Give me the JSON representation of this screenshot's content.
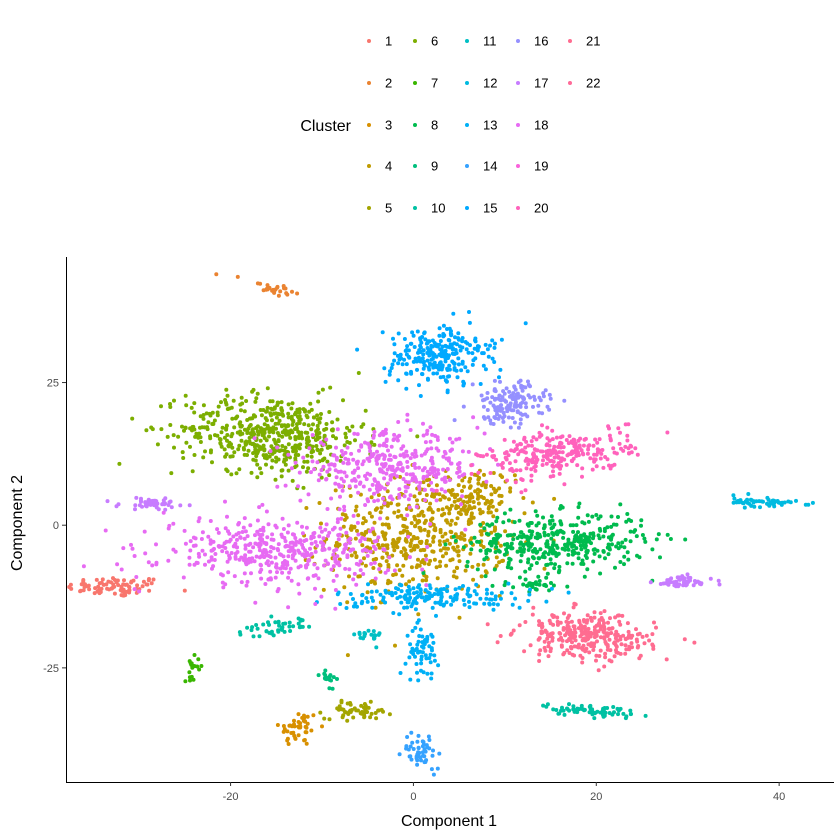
{
  "chart_data": {
    "type": "scatter",
    "title": "",
    "xlabel": "Component 1",
    "ylabel": "Component 2",
    "xlim": [
      -38,
      46
    ],
    "ylim": [
      -45,
      47
    ],
    "x_ticks": [
      -20,
      0,
      20,
      40
    ],
    "y_ticks": [
      -25,
      0,
      25
    ],
    "grid": false,
    "legend": {
      "title": "Cluster",
      "position": "top"
    },
    "series": [
      {
        "name": "1",
        "color": "#F8766D",
        "clusters": [
          {
            "cx": -32.5,
            "cy": -10.8,
            "sx": 3.0,
            "sy": 1.0,
            "n": 80
          }
        ]
      },
      {
        "name": "2",
        "color": "#EA8331",
        "clusters": [
          {
            "cx": -15.5,
            "cy": 41.5,
            "sx": 1.8,
            "sy": 0.6,
            "n": 28,
            "rot": -0.35
          }
        ]
      },
      {
        "name": "3",
        "color": "#D89000",
        "clusters": [
          {
            "cx": -12.5,
            "cy": -35.5,
            "sx": 1.2,
            "sy": 1.8,
            "n": 45
          }
        ]
      },
      {
        "name": "4",
        "color": "#C09B00",
        "clusters": [
          {
            "cx": 0.5,
            "cy": -2.0,
            "sx": 5.5,
            "sy": 5.5,
            "n": 480
          },
          {
            "cx": 6.5,
            "cy": 4.5,
            "sx": 2.5,
            "sy": 3.0,
            "n": 90
          }
        ]
      },
      {
        "name": "5",
        "color": "#A3A500",
        "clusters": [
          {
            "cx": -6.0,
            "cy": -32.5,
            "sx": 2.0,
            "sy": 0.8,
            "n": 55
          }
        ]
      },
      {
        "name": "6",
        "color": "#7CAE00",
        "clusters": [
          {
            "cx": -15.5,
            "cy": 16.0,
            "sx": 5.5,
            "sy": 3.8,
            "n": 520,
            "rot": -0.12
          }
        ]
      },
      {
        "name": "7",
        "color": "#39B600",
        "clusters": [
          {
            "cx": -24.0,
            "cy": -24.5,
            "sx": 0.6,
            "sy": 1.3,
            "n": 18
          }
        ]
      },
      {
        "name": "8",
        "color": "#00BB4E",
        "clusters": [
          {
            "cx": 15.5,
            "cy": -3.0,
            "sx": 5.5,
            "sy": 2.8,
            "n": 380,
            "rot": 0.05
          },
          {
            "cx": 13.5,
            "cy": -10.5,
            "sx": 1.8,
            "sy": 0.6,
            "n": 30
          }
        ]
      },
      {
        "name": "9",
        "color": "#00BF7D",
        "clusters": [
          {
            "cx": -9.5,
            "cy": -26.0,
            "sx": 0.5,
            "sy": 1.2,
            "n": 18
          }
        ]
      },
      {
        "name": "10",
        "color": "#00C1A3",
        "clusters": [
          {
            "cx": -15.0,
            "cy": -18.0,
            "sx": 2.2,
            "sy": 0.8,
            "n": 45,
            "rot": 0.35
          },
          {
            "cx": 19.5,
            "cy": -32.5,
            "sx": 3.0,
            "sy": 0.6,
            "n": 70,
            "rot": -0.1
          }
        ]
      },
      {
        "name": "11",
        "color": "#00BFC4",
        "clusters": [
          {
            "cx": -5.0,
            "cy": -19.5,
            "sx": 0.8,
            "sy": 0.8,
            "n": 20
          }
        ]
      },
      {
        "name": "12",
        "color": "#00BAE0",
        "clusters": [
          {
            "cx": 38.5,
            "cy": 4.0,
            "sx": 2.0,
            "sy": 0.5,
            "n": 55,
            "rot": -0.12
          }
        ]
      },
      {
        "name": "13",
        "color": "#00B0F6",
        "clusters": [
          {
            "cx": 2.0,
            "cy": -12.5,
            "sx": 6.0,
            "sy": 1.3,
            "n": 170
          },
          {
            "cx": 1.0,
            "cy": -22.0,
            "sx": 1.0,
            "sy": 2.5,
            "n": 60
          }
        ]
      },
      {
        "name": "14",
        "color": "#35A2FF",
        "clusters": [
          {
            "cx": 1.0,
            "cy": -39.5,
            "sx": 1.2,
            "sy": 1.8,
            "n": 50
          }
        ]
      },
      {
        "name": "15",
        "color": "#00A9FF",
        "clusters": [
          {
            "cx": 2.5,
            "cy": 29.5,
            "sx": 3.0,
            "sy": 3.0,
            "n": 230
          },
          {
            "cx": 7.0,
            "cy": 31.5,
            "sx": 1.5,
            "sy": 0.6,
            "n": 22
          }
        ]
      },
      {
        "name": "16",
        "color": "#9590FF",
        "clusters": [
          {
            "cx": 10.5,
            "cy": 21.5,
            "sx": 2.2,
            "sy": 2.0,
            "n": 150
          }
        ]
      },
      {
        "name": "17",
        "color": "#C77CFF",
        "clusters": [
          {
            "cx": -28.5,
            "cy": 3.8,
            "sx": 2.0,
            "sy": 0.6,
            "n": 55
          },
          {
            "cx": 29.5,
            "cy": -10.0,
            "sx": 1.8,
            "sy": 0.6,
            "n": 55
          }
        ]
      },
      {
        "name": "18",
        "color": "#E76BF3",
        "clusters": [
          {
            "cx": -2.5,
            "cy": 10.0,
            "sx": 5.5,
            "sy": 3.5,
            "n": 360
          },
          {
            "cx": -15.0,
            "cy": -4.5,
            "sx": 7.0,
            "sy": 3.2,
            "n": 430
          }
        ]
      },
      {
        "name": "19",
        "color": "#FA62DB",
        "clusters": []
      },
      {
        "name": "20",
        "color": "#FF62BC",
        "clusters": [
          {
            "cx": 16.0,
            "cy": 12.5,
            "sx": 4.5,
            "sy": 2.2,
            "n": 260,
            "rot": 0.25
          }
        ]
      },
      {
        "name": "21",
        "color": "#FF6C90",
        "clusters": [
          {
            "cx": 19.0,
            "cy": -19.5,
            "sx": 4.0,
            "sy": 2.2,
            "n": 300,
            "rot": -0.15
          }
        ]
      },
      {
        "name": "22",
        "color": "#FF6A98",
        "clusters": []
      }
    ]
  }
}
